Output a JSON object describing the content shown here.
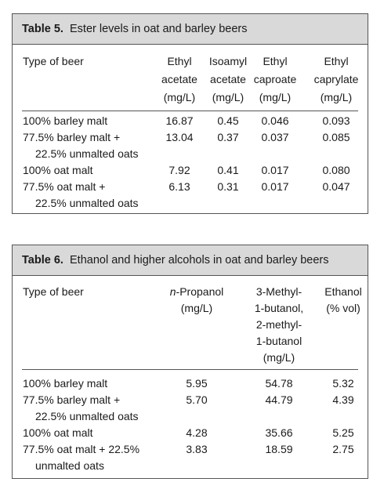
{
  "tables": [
    {
      "label": "Table 5.",
      "title": "Ester levels in oat and barley beers",
      "columns": [
        [
          "Type of beer"
        ],
        [
          "Ethyl",
          "acetate",
          "(mg/L)"
        ],
        [
          "Isoamyl",
          "acetate",
          "(mg/L)"
        ],
        [
          "Ethyl",
          "caproate",
          "(mg/L)"
        ],
        [
          "Ethyl",
          "caprylate",
          "(mg/L)"
        ]
      ],
      "rows": [
        {
          "label": [
            "100% barley malt"
          ],
          "values": [
            "16.87",
            "0.45",
            "0.046",
            "0.093"
          ]
        },
        {
          "label": [
            "77.5% barley malt +",
            "22.5% unmalted oats"
          ],
          "values": [
            "13.04",
            "0.37",
            "0.037",
            "0.085"
          ]
        },
        {
          "label": [
            "100% oat malt"
          ],
          "values": [
            "7.92",
            "0.41",
            "0.017",
            "0.080"
          ]
        },
        {
          "label": [
            "77.5% oat malt +",
            "22.5% unmalted oats"
          ],
          "values": [
            "6.13",
            "0.31",
            "0.017",
            "0.047"
          ]
        }
      ]
    },
    {
      "label": "Table 6.",
      "title": "Ethanol and higher alcohols in oat and barley beers",
      "columns": [
        [
          "Type of beer"
        ],
        [
          {
            "italic": "n",
            "text": "-Propanol"
          },
          "(mg/L)"
        ],
        [
          "3-Methyl-",
          "1-butanol,",
          "2-methyl-",
          "1-butanol",
          "(mg/L)"
        ],
        [
          "Ethanol",
          "(% vol)"
        ]
      ],
      "rows": [
        {
          "label": [
            "100% barley malt"
          ],
          "values": [
            "5.95",
            "54.78",
            "5.32"
          ]
        },
        {
          "label": [
            "77.5% barley malt +",
            "22.5% unmalted oats"
          ],
          "values": [
            "5.70",
            "44.79",
            "4.39"
          ]
        },
        {
          "label": [
            "100% oat malt"
          ],
          "values": [
            "4.28",
            "35.66",
            "5.25"
          ]
        },
        {
          "label": [
            "77.5% oat malt + 22.5%",
            "unmalted oats"
          ],
          "values": [
            "3.83",
            "18.59",
            "2.75"
          ]
        }
      ]
    }
  ]
}
